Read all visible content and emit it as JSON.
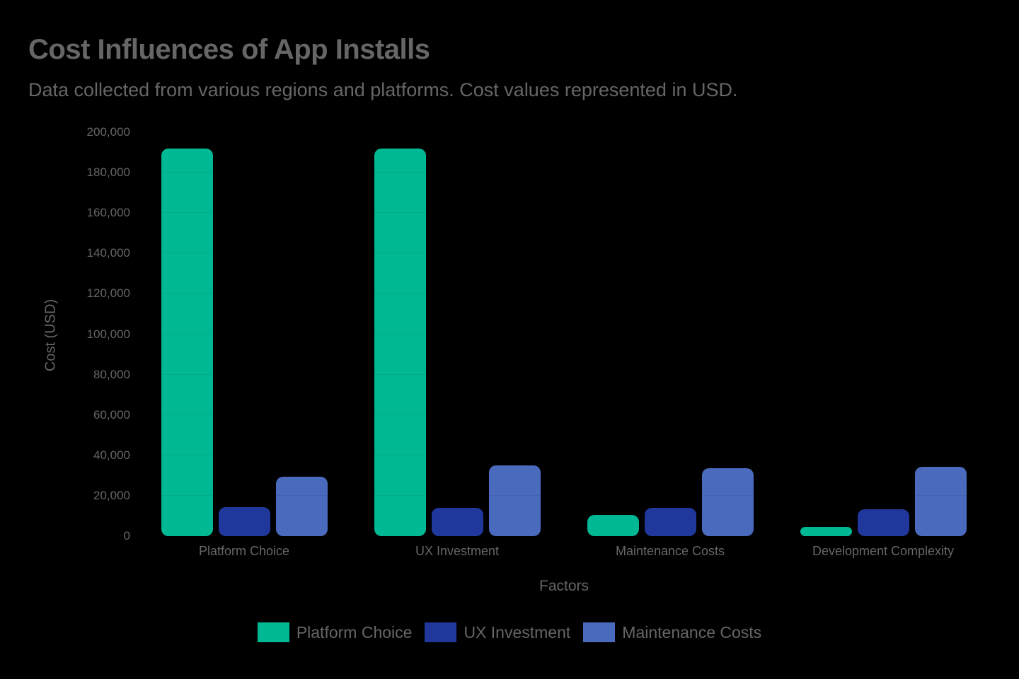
{
  "header": {
    "title": "Cost Influences of App Installs",
    "subtitle": "Data collected from various regions and platforms. Cost values represented in USD."
  },
  "colors": {
    "platform_choice": "#00b894",
    "ux_investment": "#20389b",
    "maintenance_costs": "#4a6abd",
    "text": "#666666",
    "background": "#000000"
  },
  "chart_data": {
    "type": "bar",
    "title": "Cost Influences of App Installs",
    "subtitle": "Data collected from various regions and platforms. Cost values represented in USD.",
    "xlabel": "Factors",
    "ylabel": "Cost (USD)",
    "ylim": [
      0,
      200000
    ],
    "yticks": [
      "0",
      "20,000",
      "40,000",
      "60,000",
      "80,000",
      "100,000",
      "120,000",
      "140,000",
      "160,000",
      "180,000",
      "200,000"
    ],
    "categories": [
      "Platform Choice",
      "UX Investment",
      "Maintenance Costs",
      "Development Complexity"
    ],
    "series": [
      {
        "name": "Platform Choice",
        "color": "#00b894",
        "values": [
          192000,
          192000,
          10500,
          4500
        ]
      },
      {
        "name": "UX Investment",
        "color": "#20389b",
        "values": [
          14500,
          14000,
          14000,
          13300
        ]
      },
      {
        "name": "Maintenance Costs",
        "color": "#4a6abd",
        "values": [
          29500,
          35000,
          33500,
          34500
        ]
      }
    ],
    "grid": true,
    "legend_position": "bottom"
  }
}
